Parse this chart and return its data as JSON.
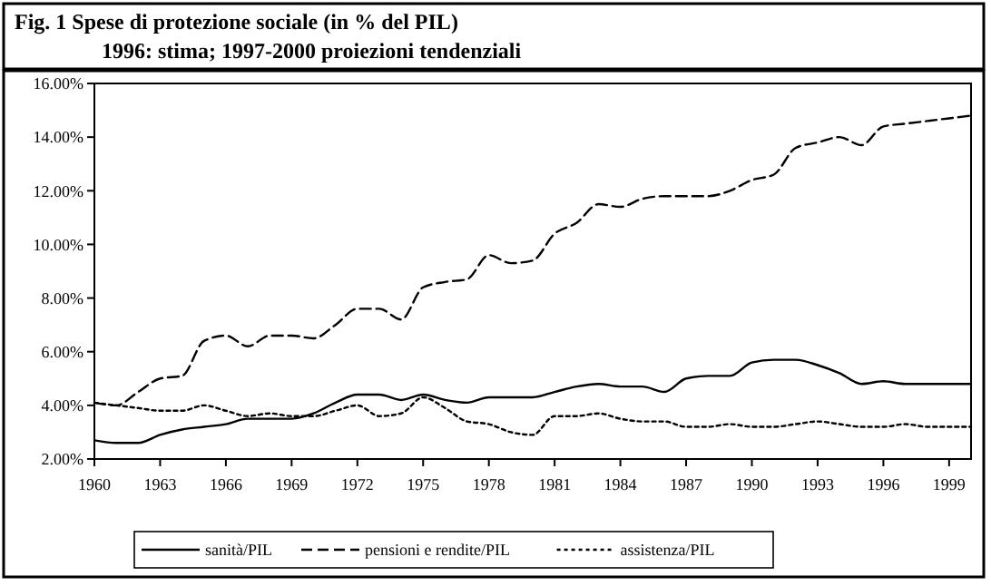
{
  "chart_data": {
    "type": "line",
    "title": "Fig. 1  Spese di protezione sociale (in % del PIL)",
    "subtitle": "1996: stima; 1997-2000 proiezioni tendenziali",
    "x": [
      1960,
      1961,
      1962,
      1963,
      1964,
      1965,
      1966,
      1967,
      1968,
      1969,
      1970,
      1971,
      1972,
      1973,
      1974,
      1975,
      1976,
      1977,
      1978,
      1979,
      1980,
      1981,
      1982,
      1983,
      1984,
      1985,
      1986,
      1987,
      1988,
      1989,
      1990,
      1991,
      1992,
      1993,
      1994,
      1995,
      1996,
      1997,
      1998,
      1999,
      2000
    ],
    "series": [
      {
        "name": "sanità/PIL",
        "color": "#000000",
        "line_style": "solid",
        "values": [
          2.7,
          2.6,
          2.6,
          2.9,
          3.1,
          3.2,
          3.3,
          3.5,
          3.5,
          3.5,
          3.7,
          4.1,
          4.4,
          4.4,
          4.2,
          4.4,
          4.2,
          4.1,
          4.3,
          4.3,
          4.3,
          4.5,
          4.7,
          4.8,
          4.7,
          4.7,
          4.5,
          5.0,
          5.1,
          5.1,
          5.6,
          5.7,
          5.7,
          5.5,
          5.2,
          4.8,
          4.9,
          4.8,
          4.8,
          4.8,
          4.8
        ]
      },
      {
        "name": "pensioni e rendite/PIL",
        "color": "#000000",
        "line_style": "dashed",
        "values": [
          4.1,
          4.0,
          4.5,
          5.0,
          5.1,
          6.4,
          6.6,
          6.2,
          6.6,
          6.6,
          6.5,
          7.0,
          7.6,
          7.6,
          7.2,
          8.4,
          8.6,
          8.7,
          9.6,
          9.3,
          9.4,
          10.4,
          10.8,
          11.5,
          11.4,
          11.7,
          11.8,
          11.8,
          11.8,
          12.0,
          12.4,
          12.6,
          13.6,
          13.8,
          14.0,
          13.7,
          14.4,
          14.5,
          14.6,
          14.7,
          14.8
        ]
      },
      {
        "name": "assistenza/PIL",
        "color": "#000000",
        "line_style": "dotted",
        "values": [
          4.1,
          4.0,
          3.9,
          3.8,
          3.8,
          4.0,
          3.8,
          3.6,
          3.7,
          3.6,
          3.6,
          3.8,
          4.0,
          3.6,
          3.7,
          4.3,
          3.9,
          3.4,
          3.3,
          3.0,
          2.9,
          3.6,
          3.6,
          3.7,
          3.5,
          3.4,
          3.4,
          3.2,
          3.2,
          3.3,
          3.2,
          3.2,
          3.3,
          3.4,
          3.3,
          3.2,
          3.2,
          3.3,
          3.2,
          3.2,
          3.2
        ]
      }
    ],
    "xlim": [
      1960,
      2000
    ],
    "xticks": [
      1960,
      1963,
      1966,
      1969,
      1972,
      1975,
      1978,
      1981,
      1984,
      1987,
      1990,
      1993,
      1996,
      1999
    ],
    "ylim": [
      2,
      16
    ],
    "yticks": [
      {
        "value": 2,
        "label": "2.00%"
      },
      {
        "value": 4,
        "label": "4.00%"
      },
      {
        "value": 6,
        "label": "6.00%"
      },
      {
        "value": 8,
        "label": "8.00%"
      },
      {
        "value": 10,
        "label": "10.00%"
      },
      {
        "value": 12,
        "label": "12.00%"
      },
      {
        "value": 14,
        "label": "14.00%"
      },
      {
        "value": 16,
        "label": "16.00%"
      }
    ],
    "grid": false,
    "legend": "bottom"
  }
}
